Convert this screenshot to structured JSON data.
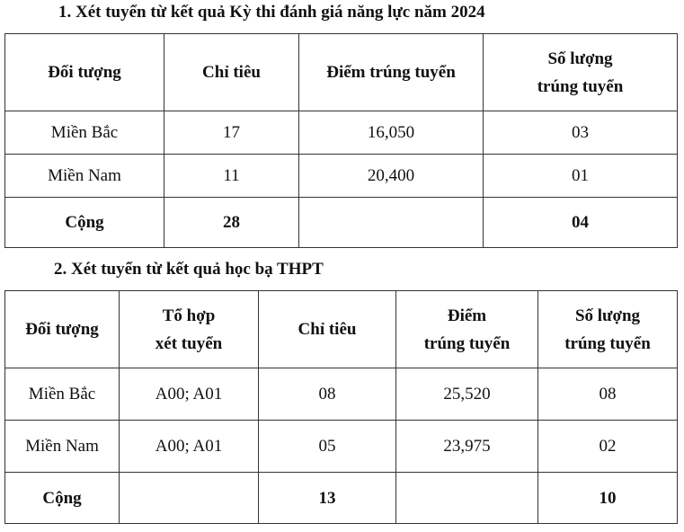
{
  "sections": [
    {
      "title": "1. Xét tuyển từ kết quả Kỳ thi đánh giá năng lực năm 2024",
      "table": {
        "header": [
          "Đối tượng",
          "Chỉ tiêu",
          "Điểm trúng tuyển",
          [
            "Số lượng",
            "trúng tuyển"
          ]
        ],
        "rows": [
          [
            "Miền Bắc",
            "17",
            "16,050",
            "03"
          ],
          [
            "Miền Nam",
            "11",
            "20,400",
            "01"
          ],
          [
            "Cộng",
            "28",
            null,
            "04"
          ]
        ]
      }
    },
    {
      "title": "2. Xét tuyển từ kết quả học bạ THPT",
      "table": {
        "header": [
          "Đối tượng",
          [
            "Tổ hợp",
            "xét tuyển"
          ],
          "Chỉ tiêu",
          [
            "Điểm",
            "trúng tuyển"
          ],
          [
            "Số lượng",
            "trúng tuyển"
          ]
        ],
        "rows": [
          [
            "Miền Bắc",
            "A00; A01",
            "08",
            "25,520",
            "08"
          ],
          [
            "Miền Nam",
            "A00; A01",
            "05",
            "23,975",
            "02"
          ],
          [
            "Cộng",
            null,
            "13",
            null,
            "10"
          ]
        ]
      }
    }
  ]
}
